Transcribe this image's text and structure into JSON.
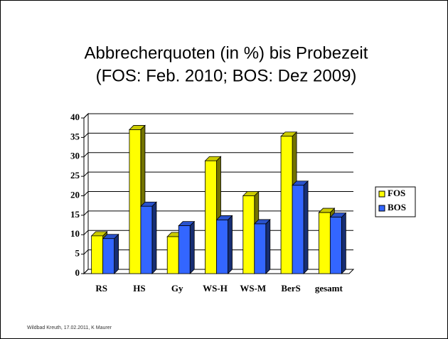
{
  "chart_data": {
    "type": "bar",
    "title": [
      "Abbrecherquoten  (in %) bis Probezeit",
      "(FOS: Feb. 2010; BOS: Dez 2009)"
    ],
    "categories": [
      "RS",
      "HS",
      "Gy",
      "WS-H",
      "WS-M",
      "BerS",
      "gesamt"
    ],
    "series": [
      {
        "name": "FOS",
        "color": "#ffff00",
        "values": [
          9.7,
          37,
          9.5,
          29,
          20,
          35.3,
          15.7
        ]
      },
      {
        "name": "BOS",
        "color": "#3366ff",
        "values": [
          9,
          17.3,
          12.3,
          13.8,
          12.8,
          22.7,
          14.5
        ]
      }
    ],
    "ylim": [
      0,
      40
    ],
    "yticks": [
      0,
      5,
      10,
      15,
      20,
      25,
      30,
      35,
      40
    ],
    "grid": true,
    "legend": "right"
  },
  "footer": "Wildbad Kreuth, 17.02.2011, K Maurer"
}
